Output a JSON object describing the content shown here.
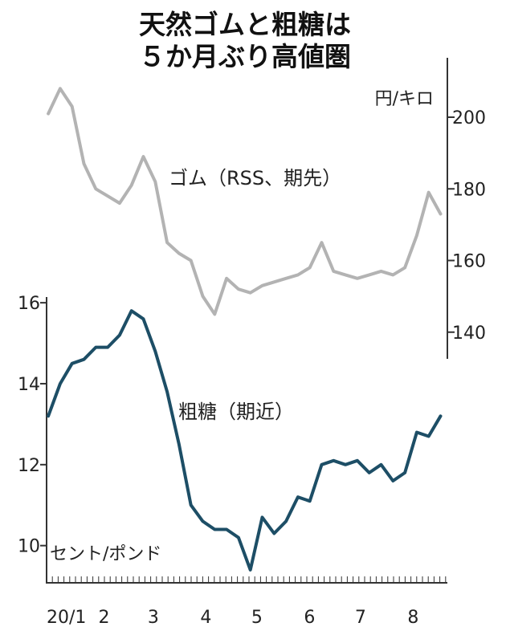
{
  "title_lines": [
    "天然ゴムと粗糖は",
    "５か月ぶり高値圏"
  ],
  "x_axis": {
    "ticks": [
      "20/1",
      "2",
      "3",
      "4",
      "5",
      "6",
      "7",
      "8"
    ]
  },
  "colors": {
    "rubber": "#b3b3b3",
    "sugar": "#1d4e66",
    "axis": "#333333",
    "text": "#222222"
  },
  "chart_data": [
    {
      "type": "line",
      "title": "",
      "series": [
        {
          "name": "ゴム（RSS、期先）"
        }
      ],
      "unit": "円/キロ",
      "ylabel": "円/キロ",
      "axis_side": "right",
      "ylim": [
        133,
        213
      ],
      "yticks": [
        140,
        160,
        180,
        200
      ],
      "x": [
        "2020-01-02",
        "2020-01-09",
        "2020-01-16",
        "2020-01-23",
        "2020-01-30",
        "2020-02-06",
        "2020-02-13",
        "2020-02-20",
        "2020-02-27",
        "2020-03-05",
        "2020-03-12",
        "2020-03-19",
        "2020-03-26",
        "2020-04-02",
        "2020-04-09",
        "2020-04-16",
        "2020-04-23",
        "2020-04-30",
        "2020-05-07",
        "2020-05-14",
        "2020-05-21",
        "2020-05-28",
        "2020-06-04",
        "2020-06-11",
        "2020-06-18",
        "2020-06-25",
        "2020-07-02",
        "2020-07-09",
        "2020-07-16",
        "2020-07-23",
        "2020-07-30",
        "2020-08-06",
        "2020-08-13",
        "2020-08-20"
      ],
      "values": [
        201,
        208,
        203,
        187,
        180,
        178,
        176,
        181,
        189,
        182,
        165,
        162,
        160,
        150,
        145,
        155,
        152,
        151,
        153,
        154,
        155,
        156,
        158,
        165,
        157,
        156,
        155,
        156,
        157,
        156,
        158,
        167,
        179,
        173
      ]
    },
    {
      "type": "line",
      "title": "",
      "series": [
        {
          "name": "粗糖（期近）"
        }
      ],
      "unit": "セント/ポンド",
      "ylabel": "セント/ポンド",
      "axis_side": "left",
      "ylim": [
        9.2,
        16.3
      ],
      "yticks": [
        10,
        12,
        14,
        16
      ],
      "x": [
        "2020-01-02",
        "2020-01-09",
        "2020-01-16",
        "2020-01-23",
        "2020-01-30",
        "2020-02-06",
        "2020-02-13",
        "2020-02-20",
        "2020-02-27",
        "2020-03-05",
        "2020-03-12",
        "2020-03-19",
        "2020-03-26",
        "2020-04-02",
        "2020-04-09",
        "2020-04-16",
        "2020-04-23",
        "2020-04-30",
        "2020-05-07",
        "2020-05-14",
        "2020-05-21",
        "2020-05-28",
        "2020-06-04",
        "2020-06-11",
        "2020-06-18",
        "2020-06-25",
        "2020-07-02",
        "2020-07-09",
        "2020-07-16",
        "2020-07-23",
        "2020-07-30",
        "2020-08-06",
        "2020-08-13",
        "2020-08-20"
      ],
      "values": [
        13.2,
        14.0,
        14.5,
        14.6,
        14.9,
        14.9,
        15.2,
        15.8,
        15.6,
        14.8,
        13.8,
        12.5,
        11.0,
        10.6,
        10.4,
        10.4,
        10.2,
        9.4,
        10.7,
        10.3,
        10.6,
        11.2,
        11.1,
        12.0,
        12.1,
        12.0,
        12.1,
        11.8,
        12.0,
        11.6,
        11.8,
        12.8,
        12.7,
        13.2
      ]
    }
  ]
}
